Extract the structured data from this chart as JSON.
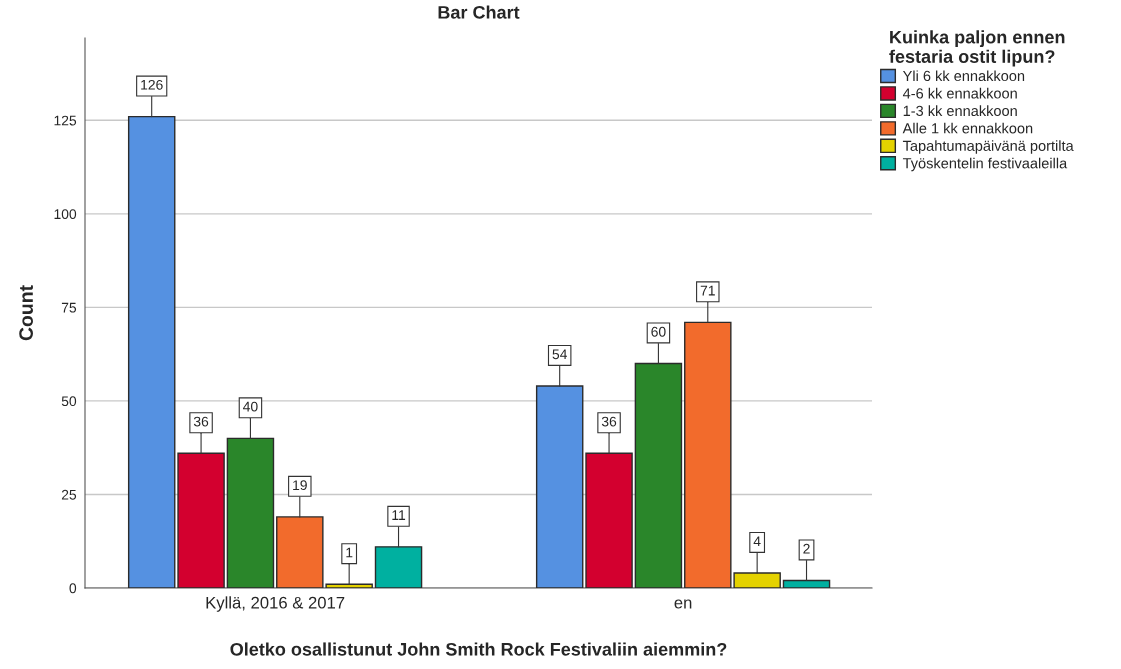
{
  "chart_data": {
    "type": "bar",
    "title": "Bar Chart",
    "xlabel": "Oletko osallistunut John Smith Rock Festivaliin aiemmin?",
    "ylabel": "Count",
    "legend_title": "Kuinka paljon ennen\nfestaria ostit lipun?",
    "categories": [
      "Kyllä, 2016 & 2017",
      "en"
    ],
    "series": [
      {
        "name": "Yli 6 kk ennakkoon",
        "color": "#5591e1",
        "values": [
          126,
          54
        ]
      },
      {
        "name": "4-6 kk ennakkoon",
        "color": "#d3002f",
        "values": [
          36,
          36
        ]
      },
      {
        "name": "1-3 kk ennakkoon",
        "color": "#2a862a",
        "values": [
          40,
          60
        ]
      },
      {
        "name": "Alle 1 kk ennakkoon",
        "color": "#f26b2c",
        "values": [
          19,
          71
        ]
      },
      {
        "name": "Tapahtumapäivänä portilta",
        "color": "#e4d200",
        "values": [
          1,
          4
        ]
      },
      {
        "name": "Työskentelin festivaaleilla",
        "color": "#00b0a0",
        "values": [
          11,
          2
        ]
      }
    ],
    "ylim": [
      0,
      147
    ],
    "yticks": [
      0,
      25,
      50,
      75,
      100,
      125
    ],
    "grid": "y",
    "legend": "top right",
    "data_labels": true
  }
}
